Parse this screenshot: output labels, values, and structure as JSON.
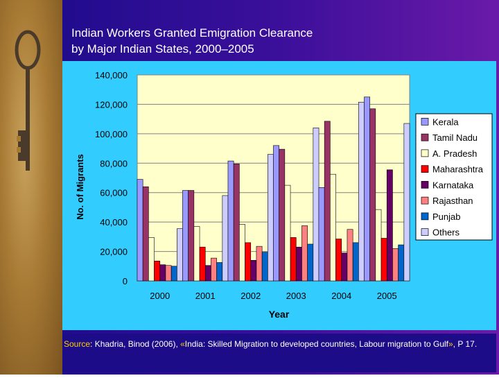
{
  "slide": {
    "title_line1": "Indian Workers Granted Emigration Clearance",
    "title_line2": "by Major Indian States, 2000–2005",
    "source_label": "Source",
    "source_text": ": Khadria, Binod (2006), ",
    "source_quote_open": "«",
    "source_work": "India: Skilled Migration to developed countries, Labour migration to Gulf",
    "source_quote_close": "»",
    "source_page": ", P 17.",
    "key_image": "key-icon"
  },
  "chart_data": {
    "type": "bar",
    "title": "",
    "xlabel": "Year",
    "ylabel": "No. of Migrants",
    "ylim": [
      0,
      140000
    ],
    "yticks": [
      0,
      20000,
      40000,
      60000,
      80000,
      100000,
      120000,
      140000
    ],
    "ytick_labels": [
      "0",
      "20,000",
      "40,000",
      "60,000",
      "80,000",
      "100,000",
      "120,000",
      "140,000"
    ],
    "grid": true,
    "legend_position": "right",
    "categories": [
      "2000",
      "2001",
      "2002",
      "2003",
      "2004",
      "2005"
    ],
    "series": [
      {
        "name": "Kerala",
        "color": "#9999ff",
        "values": [
          69000,
          61500,
          81500,
          92000,
          63500,
          125000
        ]
      },
      {
        "name": "Tamil Nadu",
        "color": "#993366",
        "values": [
          64000,
          61500,
          79500,
          89500,
          108500,
          117000
        ]
      },
      {
        "name": "A. Pradesh",
        "color": "#ffffcc",
        "values": [
          29500,
          37000,
          38500,
          65000,
          72500,
          48500
        ]
      },
      {
        "name": "Maharashtra",
        "color": "#ff0000",
        "values": [
          13500,
          23000,
          26000,
          29500,
          28500,
          29000
        ]
      },
      {
        "name": "Karnataka",
        "color": "#660066",
        "values": [
          11000,
          10500,
          14000,
          23000,
          19000,
          75500
        ]
      },
      {
        "name": "Rajasthan",
        "color": "#ff8080",
        "values": [
          10500,
          15500,
          23500,
          37500,
          35000,
          22000
        ]
      },
      {
        "name": "Punjab",
        "color": "#0066cc",
        "values": [
          10000,
          12500,
          19500,
          25000,
          26000,
          24500
        ]
      },
      {
        "name": "Others",
        "color": "#ccccff",
        "values": [
          35500,
          58000,
          86000,
          104000,
          121500,
          107000
        ]
      }
    ]
  }
}
